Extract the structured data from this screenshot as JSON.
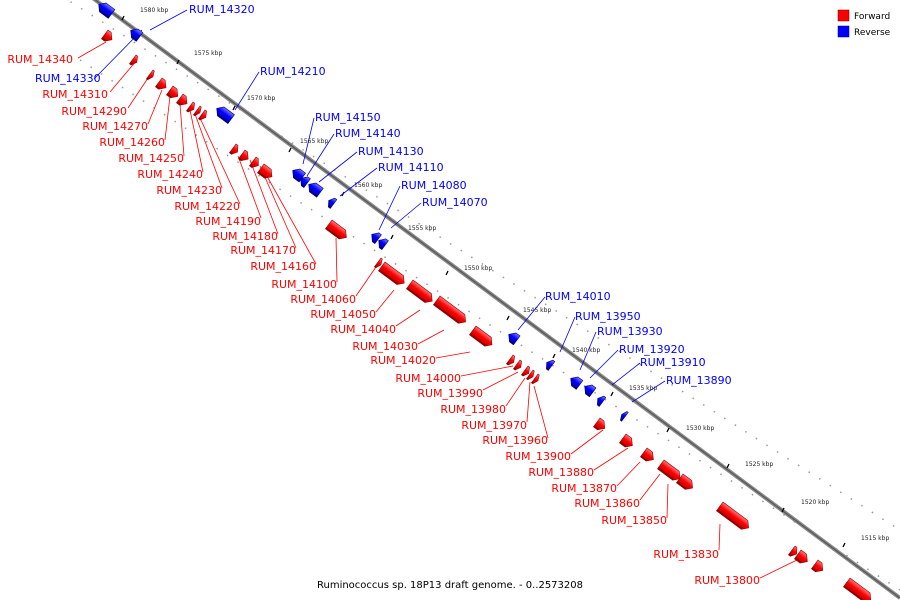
{
  "legend": {
    "forward_label": "Forward",
    "reverse_label": "Reverse",
    "forward_color": "#ff0000",
    "reverse_color": "#0000ff"
  },
  "caption": "Ruminococcus sp. 18P13 draft genome. - 0..2573208",
  "ticks": [
    {
      "label": "1580 kbp"
    },
    {
      "label": "1575 kbp"
    },
    {
      "label": "1570 kbp"
    },
    {
      "label": "1565 kbp"
    },
    {
      "label": "1560 kbp"
    },
    {
      "label": "1555 kbp"
    },
    {
      "label": "1550 kbp"
    },
    {
      "label": "1545 kbp"
    },
    {
      "label": "1540 kbp"
    },
    {
      "label": "1535 kbp"
    },
    {
      "label": "1530 kbp"
    },
    {
      "label": "1525 kbp"
    },
    {
      "label": "1520 kbp"
    },
    {
      "label": "1515 kbp"
    }
  ],
  "reverse_genes": [
    "RUM_14320",
    "RUM_14330",
    "RUM_14210",
    "RUM_14150",
    "RUM_14140",
    "RUM_14130",
    "RUM_14110",
    "RUM_14080",
    "RUM_14070",
    "RUM_14010",
    "RUM_13950",
    "RUM_13930",
    "RUM_13920",
    "RUM_13910",
    "RUM_13890"
  ],
  "forward_genes": [
    "RUM_14340",
    "RUM_14310",
    "RUM_14290",
    "RUM_14270",
    "RUM_14260",
    "RUM_14250",
    "RUM_14240",
    "RUM_14230",
    "RUM_14220",
    "RUM_14190",
    "RUM_14180",
    "RUM_14170",
    "RUM_14160",
    "RUM_14100",
    "RUM_14060",
    "RUM_14050",
    "RUM_14040",
    "RUM_14030",
    "RUM_14020",
    "RUM_14000",
    "RUM_13990",
    "RUM_13980",
    "RUM_13970",
    "RUM_13960",
    "RUM_13900",
    "RUM_13880",
    "RUM_13870",
    "RUM_13860",
    "RUM_13850",
    "RUM_13830",
    "RUM_13800"
  ]
}
